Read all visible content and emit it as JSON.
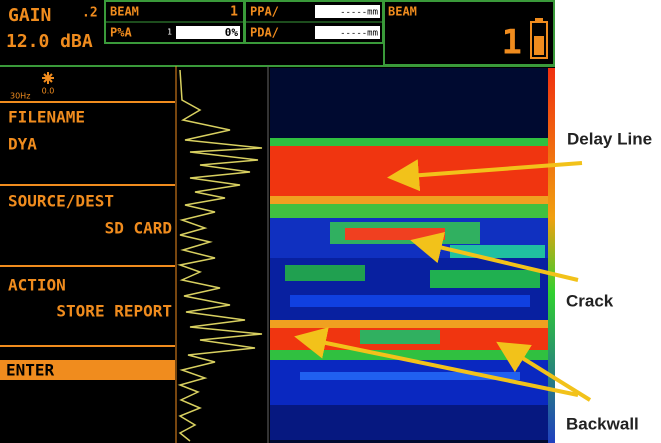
{
  "header": {
    "gain_label": "GAIN",
    "gain_step": ".2",
    "gain_value": "12.0 dBA",
    "beam_label": "BEAM",
    "beam_value": "1",
    "pa_label": "P%A",
    "pa_marker": "1",
    "pa_value": "0%",
    "ppa_label": "PPA/",
    "ppa_readout": "-----mm",
    "pda_label": "PDA/",
    "pda_readout": "-----mm",
    "beam2_label": "BEAM",
    "beam2_value": "1"
  },
  "status": {
    "rate": "30Hz",
    "angle": "0.0"
  },
  "menu": [
    {
      "label": "FILENAME",
      "value": "DYA"
    },
    {
      "label": "SOURCE/DEST",
      "value": "SD CARD"
    },
    {
      "label": "ACTION",
      "value": "STORE REPORT"
    },
    {
      "label": "ENTER"
    }
  ],
  "annotations": [
    "Delay Line",
    "Crack",
    "Backwall"
  ]
}
